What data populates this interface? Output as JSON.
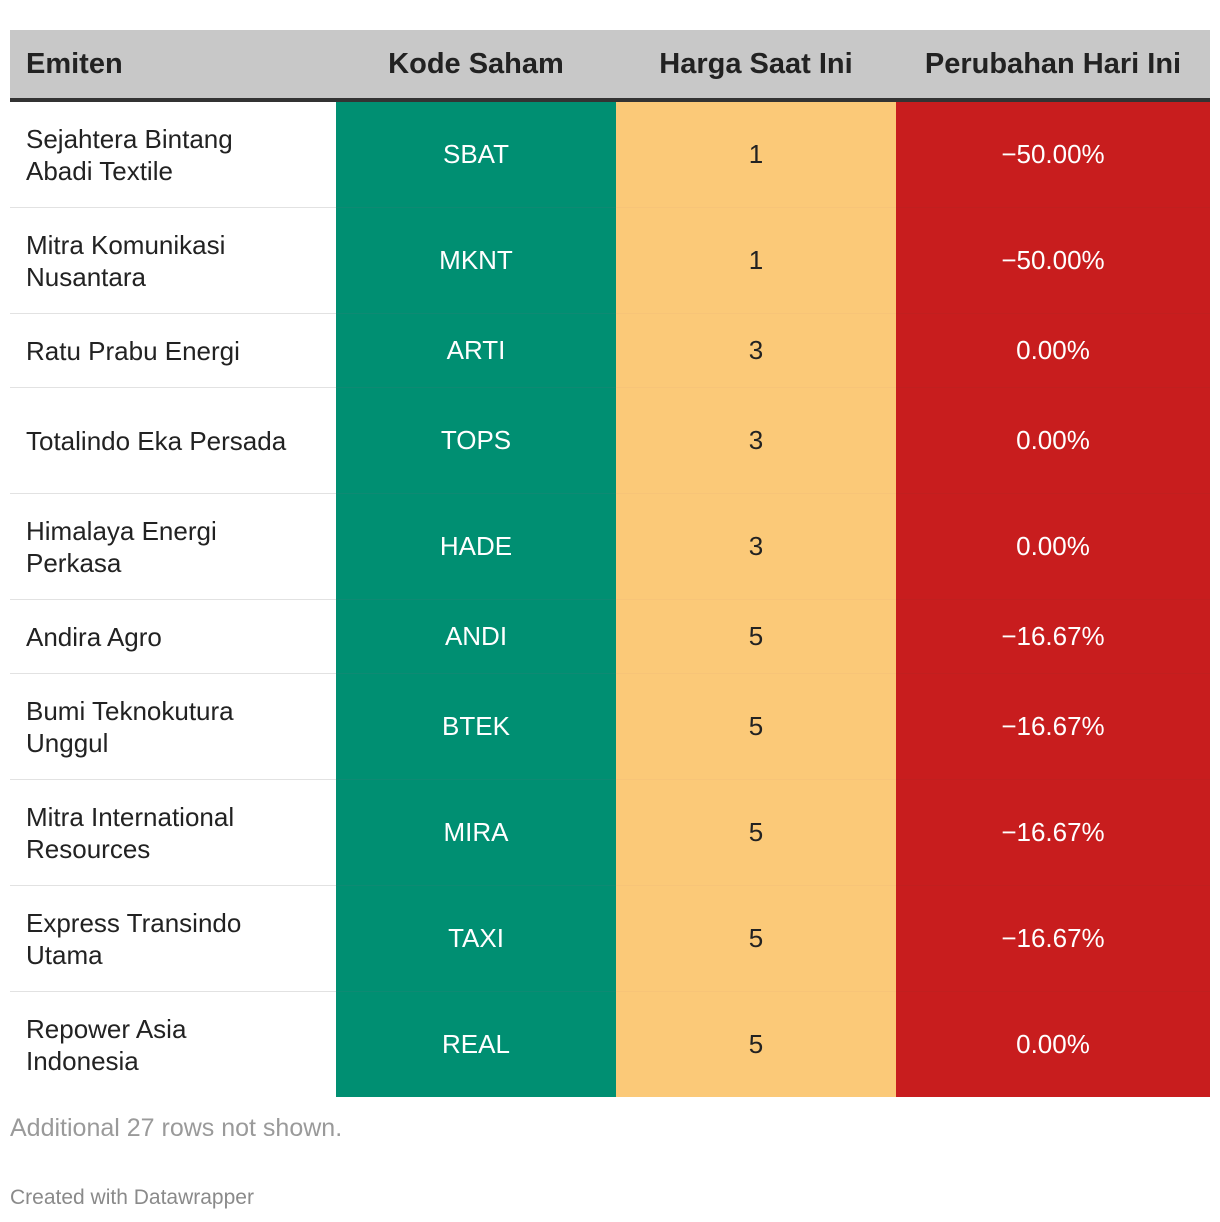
{
  "chart_data": {
    "type": "table",
    "columns": [
      "Emiten",
      "Kode Saham",
      "Harga Saat Ini",
      "Perubahan Hari Ini"
    ],
    "rows": [
      {
        "emiten": "Sejahtera Bintang Abadi Textile",
        "kode": "SBAT",
        "harga": "1",
        "perubahan": "−50.00%"
      },
      {
        "emiten": "Mitra Komunikasi Nusantara",
        "kode": "MKNT",
        "harga": "1",
        "perubahan": "−50.00%"
      },
      {
        "emiten": "Ratu Prabu Energi",
        "kode": "ARTI",
        "harga": "3",
        "perubahan": "0.00%"
      },
      {
        "emiten": "Totalindo Eka Persada",
        "kode": "TOPS",
        "harga": "3",
        "perubahan": "0.00%"
      },
      {
        "emiten": "Himalaya Energi Perkasa",
        "kode": "HADE",
        "harga": "3",
        "perubahan": "0.00%"
      },
      {
        "emiten": "Andira Agro",
        "kode": "ANDI",
        "harga": "5",
        "perubahan": "−16.67%"
      },
      {
        "emiten": "Bumi Teknokutura Unggul",
        "kode": "BTEK",
        "harga": "5",
        "perubahan": "−16.67%"
      },
      {
        "emiten": "Mitra International Resources",
        "kode": "MIRA",
        "harga": "5",
        "perubahan": "−16.67%"
      },
      {
        "emiten": "Express Transindo Utama",
        "kode": "TAXI",
        "harga": "5",
        "perubahan": "−16.67%"
      },
      {
        "emiten": "Repower Asia Indonesia",
        "kode": "REAL",
        "harga": "5",
        "perubahan": "0.00%"
      }
    ],
    "colors": {
      "header_bg": "#c8c8c8",
      "kode_bg": "#008f72",
      "harga_bg": "#fbc978",
      "perubahan_bg": "#c81d1e"
    }
  },
  "footer": {
    "note": "Additional 27 rows not shown.",
    "credit": "Created with Datawrapper"
  }
}
